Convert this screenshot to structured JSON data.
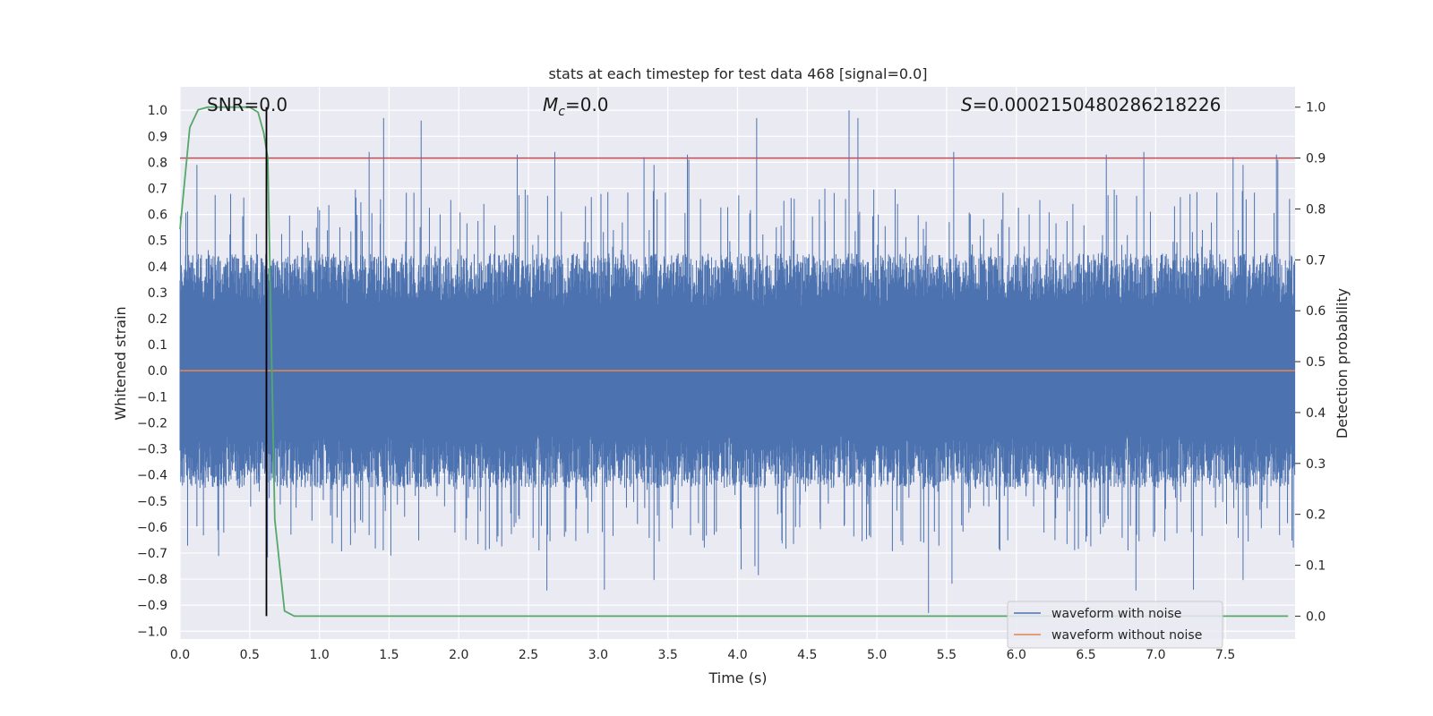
{
  "chart_data": {
    "type": "line",
    "title": "stats at each timestep for test data 468 [signal=0.0]",
    "xlabel": "Time (s)",
    "ylabel_left": "Whitened strain",
    "ylabel_right": "Detection probability",
    "xlim": [
      0.0,
      8.0
    ],
    "ylim_left": [
      -1.03,
      1.09
    ],
    "ylim_right": [
      -0.045,
      1.04
    ],
    "x_ticks": [
      0.0,
      0.5,
      1.0,
      1.5,
      2.0,
      2.5,
      3.0,
      3.5,
      4.0,
      4.5,
      5.0,
      5.5,
      6.0,
      6.5,
      7.0,
      7.5
    ],
    "x_tick_labels": [
      "0.0",
      "0.5",
      "1.0",
      "1.5",
      "2.0",
      "2.5",
      "3.0",
      "3.5",
      "4.0",
      "4.5",
      "5.0",
      "5.5",
      "6.0",
      "6.5",
      "7.0",
      "7.5"
    ],
    "y_left_ticks": [
      1.0,
      0.9,
      0.8,
      0.7,
      0.6,
      0.5,
      0.4,
      0.3,
      0.2,
      0.1,
      0.0,
      -0.1,
      -0.2,
      -0.3,
      -0.4,
      -0.5,
      -0.6,
      -0.7,
      -0.8,
      -0.9,
      -1.0
    ],
    "y_left_tick_labels": [
      "1.0",
      "0.9",
      "0.8",
      "0.7",
      "0.6",
      "0.5",
      "0.4",
      "0.3",
      "0.2",
      "0.1",
      "0.0",
      "−0.1",
      "−0.2",
      "−0.3",
      "−0.4",
      "−0.5",
      "−0.6",
      "−0.7",
      "−0.8",
      "−0.9",
      "−1.0"
    ],
    "y_right_ticks": [
      1.0,
      0.9,
      0.8,
      0.7,
      0.6,
      0.5,
      0.4,
      0.3,
      0.2,
      0.1,
      0.0
    ],
    "y_right_tick_labels": [
      "1.0",
      "0.9",
      "0.8",
      "0.7",
      "0.6",
      "0.5",
      "0.4",
      "0.3",
      "0.2",
      "0.1",
      "0.0"
    ],
    "annotations": {
      "snr": "SNR=0.0",
      "mc_symbol": "M",
      "mc_sub": "c",
      "mc_value": "=0.0",
      "s_symbol": "S",
      "s_value": "=0.0002150480286218226"
    },
    "threshold_right": 0.9,
    "marker_time": 0.62,
    "series": [
      {
        "name": "waveform with noise",
        "color": "#4c72b0",
        "axis": "left",
        "typical_envelope": [
          -0.45,
          0.45
        ],
        "peak_max": 1.0,
        "peak_min": -0.93
      },
      {
        "name": "waveform without noise",
        "color": "#dd8452",
        "axis": "left",
        "x": [
          0.0,
          8.0
        ],
        "y": [
          0.0,
          0.0
        ]
      },
      {
        "name": "detection probability",
        "color": "#55a868",
        "axis": "right",
        "x": [
          0.0,
          0.07,
          0.13,
          0.2,
          0.3,
          0.4,
          0.5,
          0.56,
          0.6,
          0.63,
          0.68,
          0.75,
          0.82,
          2.0,
          3.0,
          5.0,
          7.0,
          7.95
        ],
        "y": [
          0.76,
          0.96,
          0.995,
          1.0,
          1.0,
          1.0,
          1.0,
          0.99,
          0.95,
          0.9,
          0.19,
          0.01,
          0.0,
          0.0,
          0.0,
          0.0,
          0.0,
          0.0
        ]
      }
    ],
    "legend_position": "lower-right",
    "legend": [
      "waveform with noise",
      "waveform without noise"
    ],
    "threshold_color": "#c44e52",
    "marker_color": "#000000"
  }
}
